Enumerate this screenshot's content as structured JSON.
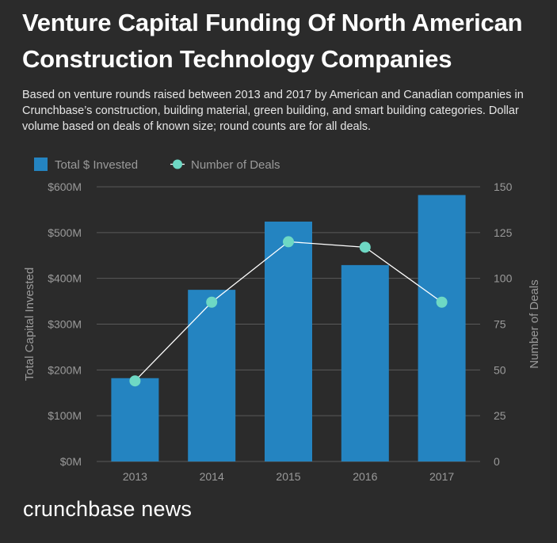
{
  "title": "Venture Capital Funding Of North American Construction Technology Companies",
  "subtitle": "Based on venture rounds raised between 2013 and 2017 by American and Canadian companies in Crunchbase’s construction, building material, green building, and smart building categories. Dollar volume based on deals of known size; round counts are for all deals.",
  "brand": "crunchbase news",
  "colors": {
    "bar": "#2484c1",
    "line_marker": "#6ed8c4",
    "line": "#ffffff",
    "grid": "#5a5a5a",
    "axis_text": "#9a9a9a"
  },
  "chart_data": {
    "type": "bar",
    "categories": [
      "2013",
      "2014",
      "2015",
      "2016",
      "2017"
    ],
    "series": [
      {
        "name": "Total $ Invested",
        "type": "bar",
        "axis": "left",
        "values": [
          182,
          375,
          524,
          429,
          582
        ]
      },
      {
        "name": "Number of Deals",
        "type": "line",
        "axis": "right",
        "values": [
          44,
          87,
          120,
          117,
          87
        ]
      }
    ],
    "ylabel": "Total Capital Invested",
    "y2label": "Number of Deals",
    "ylim": [
      0,
      600
    ],
    "y2lim": [
      0,
      150
    ],
    "yticks": [
      "$0M",
      "$100M",
      "$200M",
      "$300M",
      "$400M",
      "$500M",
      "$600M"
    ],
    "y2ticks": [
      "0",
      "25",
      "50",
      "75",
      "100",
      "125",
      "150"
    ],
    "grid": true,
    "legend": "top-left"
  }
}
